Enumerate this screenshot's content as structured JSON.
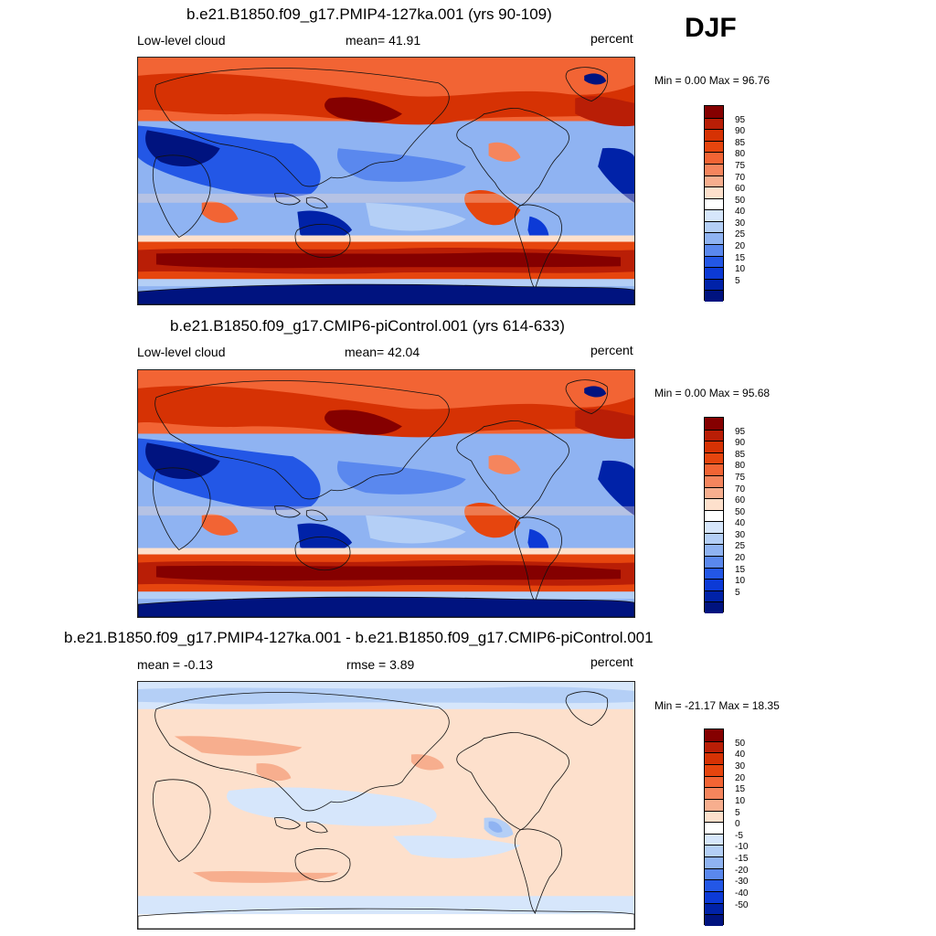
{
  "season": "DJF",
  "panels": [
    {
      "title": "b.e21.B1850.f09_g17.PMIP4-127ka.001 (yrs 90-109)",
      "left_text": "Low-level cloud",
      "center_text": "mean=  41.91",
      "right_text": "percent",
      "minmax": "Min =   0.00 Max =  96.76",
      "variant": "full",
      "colorbar": {
        "labels": [
          "95",
          "90",
          "85",
          "80",
          "75",
          "70",
          "60",
          "50",
          "40",
          "30",
          "25",
          "20",
          "15",
          "10",
          "5"
        ],
        "colors": [
          "#850000",
          "#b91e06",
          "#d63204",
          "#e6450e",
          "#f26434",
          "#f5855d",
          "#f7ae8e",
          "#fde0cc",
          "#ffffff",
          "#d6e6fb",
          "#b4cff6",
          "#8fb3f2",
          "#5a88ee",
          "#2357e6",
          "#0c3ad6",
          "#0022a8",
          "#00137f"
        ]
      }
    },
    {
      "title": "b.e21.B1850.f09_g17.CMIP6-piControl.001 (yrs 614-633)",
      "left_text": "Low-level cloud",
      "center_text": "mean=  42.04",
      "right_text": "percent",
      "minmax": "Min =   0.00 Max =  95.68",
      "variant": "full",
      "colorbar": {
        "labels": [
          "95",
          "90",
          "85",
          "80",
          "75",
          "70",
          "60",
          "50",
          "40",
          "30",
          "25",
          "20",
          "15",
          "10",
          "5"
        ],
        "colors": [
          "#850000",
          "#b91e06",
          "#d63204",
          "#e6450e",
          "#f26434",
          "#f5855d",
          "#f7ae8e",
          "#fde0cc",
          "#ffffff",
          "#d6e6fb",
          "#b4cff6",
          "#8fb3f2",
          "#5a88ee",
          "#2357e6",
          "#0c3ad6",
          "#0022a8",
          "#00137f"
        ]
      }
    },
    {
      "title": "b.e21.B1850.f09_g17.PMIP4-127ka.001 - b.e21.B1850.f09_g17.CMIP6-piControl.001",
      "left_text": "mean =  -0.13",
      "center_text": "rmse =   3.89",
      "right_text": "percent",
      "minmax": "Min = -21.17 Max =  18.35",
      "variant": "diff",
      "colorbar": {
        "labels": [
          "50",
          "40",
          "30",
          "20",
          "15",
          "10",
          "5",
          "0",
          "-5",
          "-10",
          "-15",
          "-20",
          "-30",
          "-40",
          "-50"
        ],
        "colors": [
          "#850000",
          "#b91e06",
          "#d63204",
          "#e6450e",
          "#f26434",
          "#f5855d",
          "#f7ae8e",
          "#fde0cc",
          "#ffffff",
          "#d6e6fb",
          "#b4cff6",
          "#8fb3f2",
          "#5a88ee",
          "#2357e6",
          "#0c3ad6",
          "#0022a8",
          "#00137f"
        ]
      }
    }
  ]
}
